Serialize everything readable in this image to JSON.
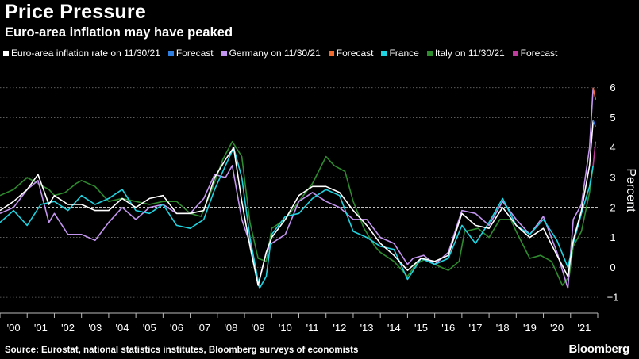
{
  "header": {
    "title": "Price Pressure",
    "subtitle": "Euro-area inflation may have peaked"
  },
  "legend": [
    {
      "label": "Euro-area inflation rate on 11/30/21",
      "color": "#ffffff"
    },
    {
      "label": "Forecast",
      "color": "#2f7fe0"
    },
    {
      "label": "Germany on 11/30/21",
      "color": "#c495f0"
    },
    {
      "label": "Forecast",
      "color": "#f26b2e"
    },
    {
      "label": "France",
      "color": "#1fd3e0"
    },
    {
      "label": "Italy on 11/30/21",
      "color": "#2e8b2e"
    },
    {
      "label": "Forecast",
      "color": "#c03b9e"
    }
  ],
  "footer": {
    "source": "Source: Eurostat, national statistics institutes, Bloomberg surveys of economists",
    "brand": "Bloomberg"
  },
  "chart_data": {
    "type": "line",
    "title": "Price Pressure",
    "subtitle": "Euro-area inflation may have peaked",
    "ylabel": "Percent",
    "ylim": [
      -1.5,
      6.6
    ],
    "yticks": [
      -1,
      0,
      1,
      2,
      3,
      4,
      5,
      6
    ],
    "xlim": [
      2000,
      2022
    ],
    "xtick_labels": [
      "'00",
      "'01",
      "'02",
      "'03",
      "'04",
      "'05",
      "'06",
      "'07",
      "'08",
      "'09",
      "'10",
      "'11",
      "'12",
      "'13",
      "'14",
      "'15",
      "'16",
      "'17",
      "'18",
      "'19",
      "'20",
      "'21"
    ],
    "reference_line": 2,
    "series": [
      {
        "name": "Italy on 11/30/21",
        "color": "#2e8b2e",
        "x": [
          2000,
          2000.5,
          2001,
          2001.4,
          2001.8,
          2002,
          2002.4,
          2002.8,
          2003,
          2003.5,
          2004,
          2004.5,
          2005,
          2005.5,
          2006,
          2006.5,
          2007,
          2007.4,
          2007.8,
          2008.2,
          2008.55,
          2008.9,
          2009.2,
          2009.5,
          2009.8,
          2010,
          2010.5,
          2011,
          2011.5,
          2012,
          2012.3,
          2012.7,
          2013,
          2013.4,
          2013.8,
          2014,
          2014.5,
          2015,
          2015.3,
          2015.7,
          2016,
          2016.5,
          2016.9,
          2017.1,
          2017.6,
          2018,
          2018.4,
          2018.8,
          2019,
          2019.5,
          2019.9,
          2020.3,
          2020.7,
          2020.95,
          2021.1,
          2021.4,
          2021.7,
          2021.83
        ],
        "values": [
          2.4,
          2.6,
          3.0,
          2.8,
          2.6,
          2.4,
          2.5,
          2.8,
          2.9,
          2.7,
          2.2,
          2.3,
          2.2,
          2.1,
          2.2,
          2.2,
          1.8,
          1.7,
          2.6,
          3.6,
          4.2,
          3.7,
          1.5,
          0.3,
          0.2,
          1.3,
          1.6,
          2.2,
          2.8,
          3.7,
          3.4,
          3.2,
          2.2,
          1.3,
          0.7,
          0.5,
          0.2,
          -0.3,
          0.1,
          0.3,
          0.1,
          -0.1,
          0.2,
          1.2,
          1.3,
          1.0,
          1.6,
          1.6,
          1.2,
          0.3,
          0.4,
          0.2,
          -0.6,
          -0.3,
          0.7,
          1.2,
          2.5,
          3.4
        ]
      },
      {
        "name": "Germany on 11/30/21",
        "color": "#c495f0",
        "x": [
          2000,
          2000.5,
          2001,
          2001.4,
          2001.8,
          2002,
          2002.5,
          2003,
          2003.5,
          2004,
          2004.5,
          2005,
          2005.5,
          2006,
          2006.5,
          2007,
          2007.5,
          2007.9,
          2008.3,
          2008.55,
          2008.9,
          2009.2,
          2009.5,
          2009.8,
          2010,
          2010.5,
          2011,
          2011.5,
          2012,
          2012.5,
          2013,
          2013.5,
          2014,
          2014.5,
          2015,
          2015.2,
          2015.6,
          2016,
          2016.5,
          2017,
          2017.5,
          2018,
          2018.5,
          2019,
          2019.5,
          2020,
          2020.5,
          2020.9,
          2021.1,
          2021.4,
          2021.7,
          2021.83
        ],
        "values": [
          1.8,
          2.0,
          2.6,
          2.9,
          1.5,
          1.8,
          1.1,
          1.1,
          0.9,
          1.5,
          2.0,
          1.6,
          2.0,
          2.1,
          1.8,
          1.8,
          2.3,
          3.1,
          3.0,
          3.4,
          1.6,
          0.8,
          -0.6,
          0.5,
          0.8,
          1.1,
          2.2,
          2.5,
          2.2,
          2.0,
          1.6,
          1.6,
          1.0,
          0.8,
          0.1,
          0.3,
          0.4,
          0.1,
          0.5,
          1.9,
          1.8,
          1.4,
          2.2,
          1.6,
          1.1,
          1.7,
          0.5,
          -0.7,
          1.6,
          2.1,
          4.0,
          6.0
        ]
      },
      {
        "name": "France",
        "color": "#1fd3e0",
        "x": [
          2000,
          2000.5,
          2001,
          2001.5,
          2002,
          2002.5,
          2003,
          2003.5,
          2004,
          2004.5,
          2005,
          2005.5,
          2006,
          2006.5,
          2007,
          2007.5,
          2007.9,
          2008.3,
          2008.6,
          2008.9,
          2009.2,
          2009.55,
          2009.8,
          2010,
          2010.5,
          2011,
          2011.5,
          2012,
          2012.5,
          2013,
          2013.5,
          2014,
          2014.5,
          2015,
          2015.5,
          2016,
          2016.5,
          2017,
          2017.5,
          2018,
          2018.5,
          2019,
          2019.5,
          2020,
          2020.5,
          2020.9,
          2021.1,
          2021.4,
          2021.7,
          2021.83
        ],
        "values": [
          1.5,
          1.9,
          1.4,
          2.1,
          2.2,
          1.9,
          2.4,
          2.1,
          2.3,
          2.6,
          1.9,
          1.8,
          2.1,
          1.4,
          1.3,
          1.6,
          2.6,
          3.4,
          4.0,
          3.0,
          1.0,
          -0.7,
          -0.3,
          1.1,
          1.7,
          1.8,
          2.3,
          2.6,
          2.4,
          1.2,
          1.0,
          0.7,
          0.6,
          -0.4,
          0.3,
          0.1,
          0.3,
          1.4,
          0.8,
          1.5,
          2.3,
          1.4,
          1.1,
          1.6,
          0.9,
          0.0,
          0.8,
          1.8,
          2.7,
          3.4
        ]
      },
      {
        "name": "Euro-area inflation rate on 11/30/21",
        "color": "#ffffff",
        "x": [
          2000,
          2000.5,
          2001,
          2001.4,
          2001.8,
          2002,
          2002.5,
          2003,
          2003.5,
          2004,
          2004.5,
          2005,
          2005.5,
          2006,
          2006.5,
          2007,
          2007.5,
          2007.9,
          2008.3,
          2008.6,
          2008.9,
          2009.2,
          2009.5,
          2009.8,
          2010,
          2010.5,
          2011,
          2011.5,
          2012,
          2012.5,
          2013,
          2013.5,
          2014,
          2014.5,
          2015,
          2015.5,
          2016,
          2016.5,
          2017,
          2017.5,
          2018,
          2018.5,
          2019,
          2019.5,
          2020,
          2020.5,
          2020.9,
          2021.1,
          2021.4,
          2021.7,
          2021.83
        ],
        "values": [
          1.9,
          2.2,
          2.6,
          3.1,
          2.1,
          2.4,
          2.1,
          2.1,
          1.9,
          1.9,
          2.3,
          2.0,
          2.3,
          2.4,
          1.8,
          1.8,
          1.9,
          3.0,
          3.6,
          4.0,
          2.2,
          0.7,
          -0.6,
          0.5,
          1.0,
          1.6,
          2.4,
          2.7,
          2.7,
          2.5,
          1.9,
          1.4,
          0.8,
          0.4,
          -0.1,
          0.3,
          0.2,
          0.4,
          1.8,
          1.4,
          1.3,
          2.0,
          1.4,
          1.0,
          1.3,
          0.4,
          -0.3,
          0.9,
          1.9,
          3.4,
          4.9
        ]
      },
      {
        "name": "Forecast (Euro-area)",
        "color": "#2f7fe0",
        "x": [
          2021.83,
          2021.92
        ],
        "values": [
          4.9,
          4.7
        ]
      },
      {
        "name": "Forecast (Germany)",
        "color": "#f26b2e",
        "x": [
          2021.83,
          2021.92
        ],
        "values": [
          6.0,
          5.6
        ]
      },
      {
        "name": "Forecast (Italy)",
        "color": "#c03b9e",
        "x": [
          2021.83,
          2021.92
        ],
        "values": [
          3.4,
          4.2
        ]
      }
    ]
  }
}
